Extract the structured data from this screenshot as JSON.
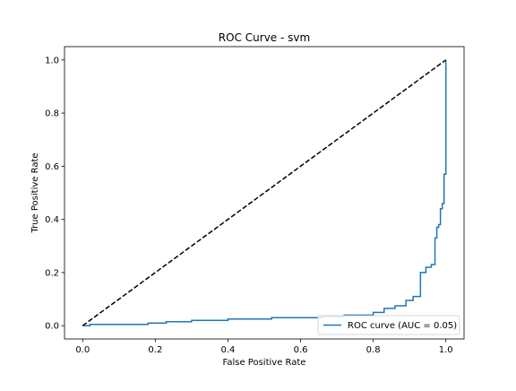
{
  "chart_data": {
    "type": "line",
    "title": "ROC Curve - svm",
    "xlabel": "False Positive Rate",
    "ylabel": "True Positive Rate",
    "xlim": [
      -0.05,
      1.05
    ],
    "ylim": [
      -0.05,
      1.05
    ],
    "xticks": [
      0.0,
      0.2,
      0.4,
      0.6,
      0.8,
      1.0
    ],
    "xtick_labels": [
      "0.0",
      "0.2",
      "0.4",
      "0.6",
      "0.8",
      "1.0"
    ],
    "yticks": [
      0.0,
      0.2,
      0.4,
      0.6,
      0.8,
      1.0
    ],
    "ytick_labels": [
      "0.0",
      "0.2",
      "0.4",
      "0.6",
      "0.8",
      "1.0"
    ],
    "grid": false,
    "legend_position": "lower-right",
    "series": [
      {
        "name": "ROC curve (AUC = 0.05)",
        "color": "#1f77b4",
        "style": "solid",
        "step": true,
        "x": [
          0.0,
          0.02,
          0.02,
          0.18,
          0.18,
          0.23,
          0.23,
          0.3,
          0.3,
          0.4,
          0.4,
          0.52,
          0.52,
          0.66,
          0.66,
          0.72,
          0.72,
          0.8,
          0.8,
          0.83,
          0.83,
          0.86,
          0.86,
          0.89,
          0.89,
          0.91,
          0.91,
          0.93,
          0.93,
          0.945,
          0.945,
          0.96,
          0.96,
          0.97,
          0.97,
          0.975,
          0.975,
          0.98,
          0.98,
          0.985,
          0.985,
          0.99,
          0.99,
          0.995,
          0.995,
          1.0,
          1.0
        ],
        "y": [
          0.0,
          0.0,
          0.005,
          0.005,
          0.01,
          0.01,
          0.015,
          0.015,
          0.02,
          0.02,
          0.025,
          0.025,
          0.03,
          0.03,
          0.035,
          0.035,
          0.04,
          0.04,
          0.05,
          0.05,
          0.065,
          0.065,
          0.075,
          0.075,
          0.095,
          0.095,
          0.11,
          0.11,
          0.2,
          0.2,
          0.22,
          0.22,
          0.23,
          0.23,
          0.33,
          0.33,
          0.37,
          0.37,
          0.38,
          0.38,
          0.44,
          0.44,
          0.46,
          0.46,
          0.57,
          0.57,
          1.0
        ]
      },
      {
        "name": "",
        "color": "#000000",
        "style": "dashed",
        "step": false,
        "x": [
          0.0,
          1.0
        ],
        "y": [
          0.0,
          1.0
        ]
      }
    ]
  }
}
